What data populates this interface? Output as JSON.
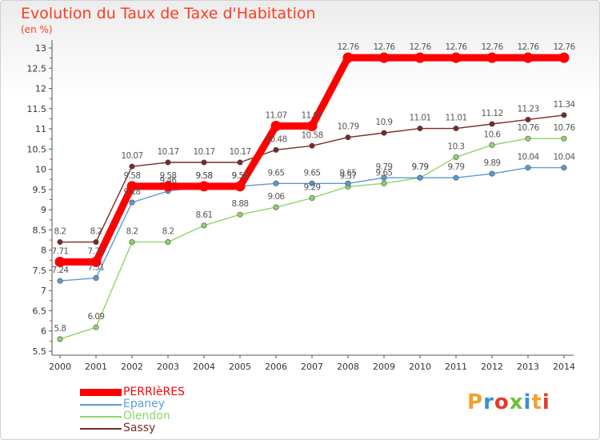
{
  "header": {
    "title": "Evolution du Taux de Taxe d'Habitation",
    "unit": "(en %)"
  },
  "logo": {
    "text": "Proxiti",
    "colors": [
      "#f2a02c",
      "#3b8fd1",
      "#e8382a",
      "#6cbf3a"
    ]
  },
  "chart_data": {
    "type": "line",
    "title": "Evolution du Taux de Taxe d'Habitation",
    "ylabel": "(en %)",
    "xlabel": "",
    "x": [
      "2000",
      "2001",
      "2002",
      "2003",
      "2004",
      "2005",
      "2006",
      "2007",
      "2008",
      "2009",
      "2010",
      "2011",
      "2012",
      "2013",
      "2014"
    ],
    "ylim": [
      5.5,
      13
    ],
    "yticks": [
      "5.5",
      "6",
      "6.5",
      "7",
      "7.5",
      "8",
      "8.5",
      "9",
      "9.5",
      "10",
      "10.5",
      "11",
      "11.5",
      "12",
      "12.5",
      "13"
    ],
    "grid": false,
    "legend_position": "bottom-left",
    "series": [
      {
        "name": "Sassy",
        "color": "#7a2a2a",
        "values": [
          8.2,
          8.2,
          10.07,
          10.17,
          10.17,
          10.17,
          10.48,
          10.58,
          10.79,
          10.9,
          11.01,
          11.01,
          11.12,
          11.23,
          11.34
        ],
        "labels": [
          "8.2",
          "8.2",
          "10.07",
          "10.17",
          "10.17",
          "10.17",
          "10.48",
          "10.58",
          "10.79",
          "10.9",
          "11.01",
          "11.01",
          "11.12",
          "11.23",
          "11.34"
        ]
      },
      {
        "name": "Olendon",
        "color": "#8fd46a",
        "values": [
          5.8,
          6.09,
          8.2,
          8.2,
          8.61,
          8.88,
          9.06,
          9.29,
          9.57,
          9.65,
          9.79,
          10.3,
          10.6,
          10.76,
          10.76
        ],
        "labels": [
          "5.8",
          "6.09",
          "8.2",
          "8.2",
          "8.61",
          "8.88",
          "9.06",
          "9.29",
          "9.57",
          "9.65",
          "9.79",
          "10.3",
          "10.6",
          "10.76",
          "10.76"
        ]
      },
      {
        "name": "Epaney",
        "color": "#5b9bd5",
        "values": [
          7.24,
          7.31,
          9.18,
          9.46,
          9.58,
          9.58,
          9.65,
          9.65,
          9.65,
          9.79,
          9.79,
          9.79,
          9.89,
          10.04,
          10.04
        ],
        "labels": [
          "7.24",
          "7.31",
          "9.18",
          "9.46",
          "9.58",
          "9.58",
          "9.65",
          "9.65",
          "9.65",
          "9.79",
          "9.79",
          "9.79",
          "9.89",
          "10.04",
          "10.04"
        ]
      },
      {
        "name": "PERRIèRES",
        "color": "#ff0000",
        "values": [
          7.71,
          7.71,
          9.58,
          9.58,
          9.58,
          9.58,
          11.07,
          11.07,
          12.76,
          12.76,
          12.76,
          12.76,
          12.76,
          12.76,
          12.76
        ],
        "labels": [
          "7.71",
          "7.71",
          "9.58",
          "9.58",
          "9.58",
          "9.58",
          "11.07",
          "11.07",
          "12.76",
          "12.76",
          "12.76",
          "12.76",
          "12.76",
          "12.76",
          "12.76"
        ]
      }
    ],
    "legend": [
      {
        "name": "PERRIèRES",
        "color": "#ff0000"
      },
      {
        "name": "Epaney",
        "color": "#5b9bd5"
      },
      {
        "name": "Olendon",
        "color": "#8fd46a"
      },
      {
        "name": "Sassy",
        "color": "#7a2a2a"
      }
    ]
  }
}
